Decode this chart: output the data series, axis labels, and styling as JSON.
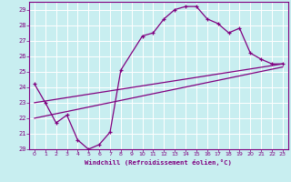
{
  "xlabel": "Windchill (Refroidissement éolien,°C)",
  "bg_color": "#c8eef0",
  "grid_color": "#ffffff",
  "line_color": "#800080",
  "ylim": [
    20,
    29.5
  ],
  "xlim": [
    -0.5,
    23.5
  ],
  "yticks": [
    20,
    21,
    22,
    23,
    24,
    25,
    26,
    27,
    28,
    29
  ],
  "xticks": [
    0,
    1,
    2,
    3,
    4,
    5,
    6,
    7,
    8,
    9,
    10,
    11,
    12,
    13,
    14,
    15,
    16,
    17,
    18,
    19,
    20,
    21,
    22,
    23
  ],
  "curve1_x": [
    0,
    1,
    2,
    3,
    4,
    5,
    6,
    7,
    8,
    10,
    11,
    12,
    13,
    14,
    15,
    16,
    17,
    18,
    19,
    20,
    21,
    22,
    23
  ],
  "curve1_y": [
    24.2,
    23.0,
    21.7,
    22.2,
    20.6,
    20.0,
    20.3,
    21.1,
    25.1,
    27.3,
    27.5,
    28.4,
    29.0,
    29.2,
    29.2,
    28.4,
    28.1,
    27.5,
    27.8,
    26.2,
    25.8,
    25.5,
    25.5
  ],
  "line1_x": [
    0,
    23
  ],
  "line1_y": [
    22.0,
    25.3
  ],
  "line2_x": [
    0,
    23
  ],
  "line2_y": [
    23.0,
    25.5
  ]
}
